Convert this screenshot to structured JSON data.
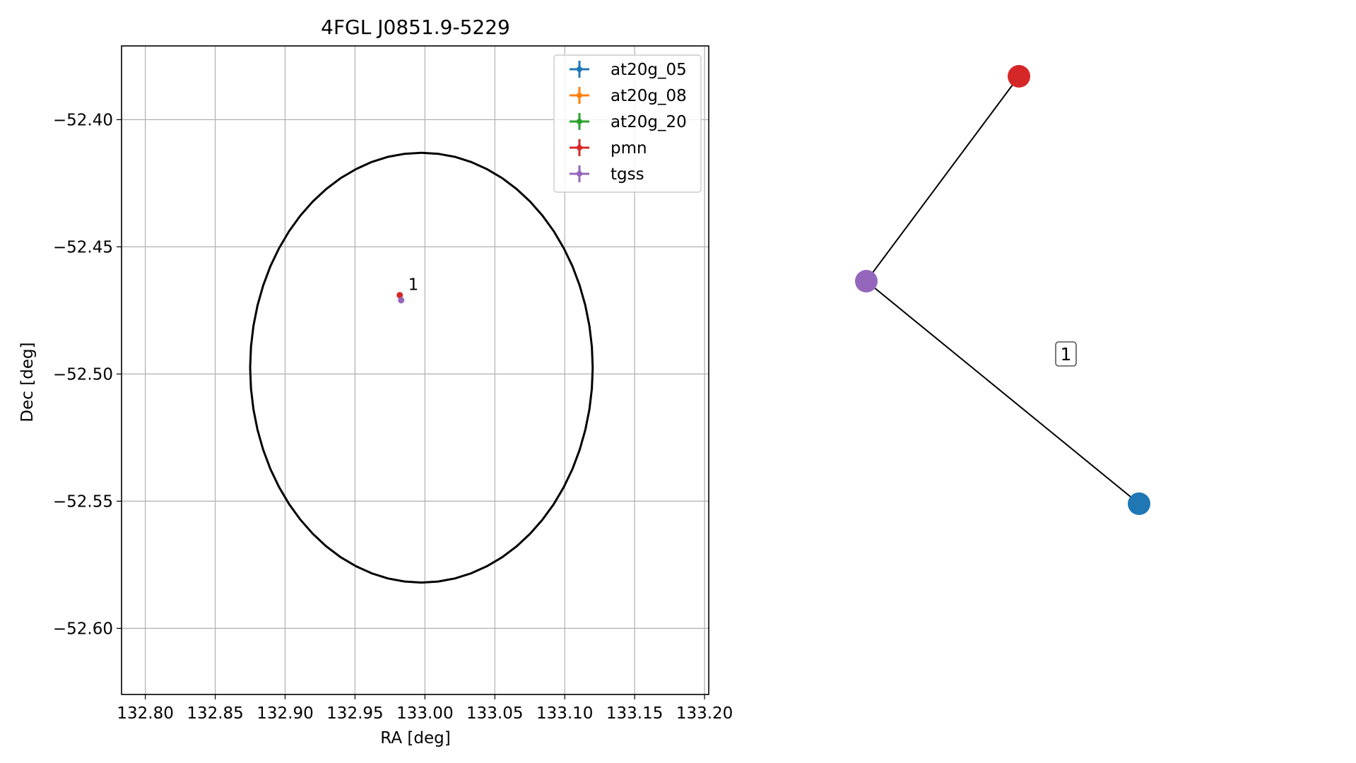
{
  "chart_data": [
    {
      "type": "scatter",
      "title": "4FGL J0851.9-5229",
      "xlabel": "RA [deg]",
      "ylabel": "Dec [deg]",
      "xlim": [
        132.783,
        133.203
      ],
      "ylim": [
        -52.626,
        -52.371
      ],
      "xticks": [
        "132.80",
        "132.85",
        "132.90",
        "132.95",
        "133.00",
        "133.05",
        "133.10",
        "133.15",
        "133.20"
      ],
      "yticks": [
        "−52.40",
        "−52.45",
        "−52.50",
        "−52.55",
        "−52.60"
      ],
      "grid": true,
      "legend_position": "upper right",
      "series": [
        {
          "name": "at20g_05",
          "color": "#1f77b4",
          "x": [],
          "y": []
        },
        {
          "name": "at20g_08",
          "color": "#ff7f0e",
          "x": [],
          "y": []
        },
        {
          "name": "at20g_20",
          "color": "#2ca02c",
          "x": [],
          "y": []
        },
        {
          "name": "pmn",
          "color": "#d62728",
          "x": [
            132.982
          ],
          "y": [
            -52.469
          ]
        },
        {
          "name": "tgss",
          "color": "#9467bd",
          "x": [
            132.983
          ],
          "y": [
            -52.471
          ]
        }
      ],
      "ellipse": {
        "center": [
          132.9975,
          -52.4975
        ],
        "ra_semi_axis": 0.1225,
        "dec_semi_axis": 0.0845,
        "color": "#000000"
      },
      "annotations": [
        {
          "text": "1",
          "x": 132.988,
          "y": -52.467
        }
      ]
    },
    {
      "type": "network",
      "nodes": [
        {
          "id": "pmn",
          "color": "#d62728"
        },
        {
          "id": "tgss",
          "color": "#9467bd"
        },
        {
          "id": "at20g_05",
          "color": "#1f77b4"
        }
      ],
      "edges": [
        [
          "tgss",
          "pmn"
        ],
        [
          "tgss",
          "at20g_05"
        ]
      ],
      "labels": [
        "1"
      ]
    }
  ]
}
